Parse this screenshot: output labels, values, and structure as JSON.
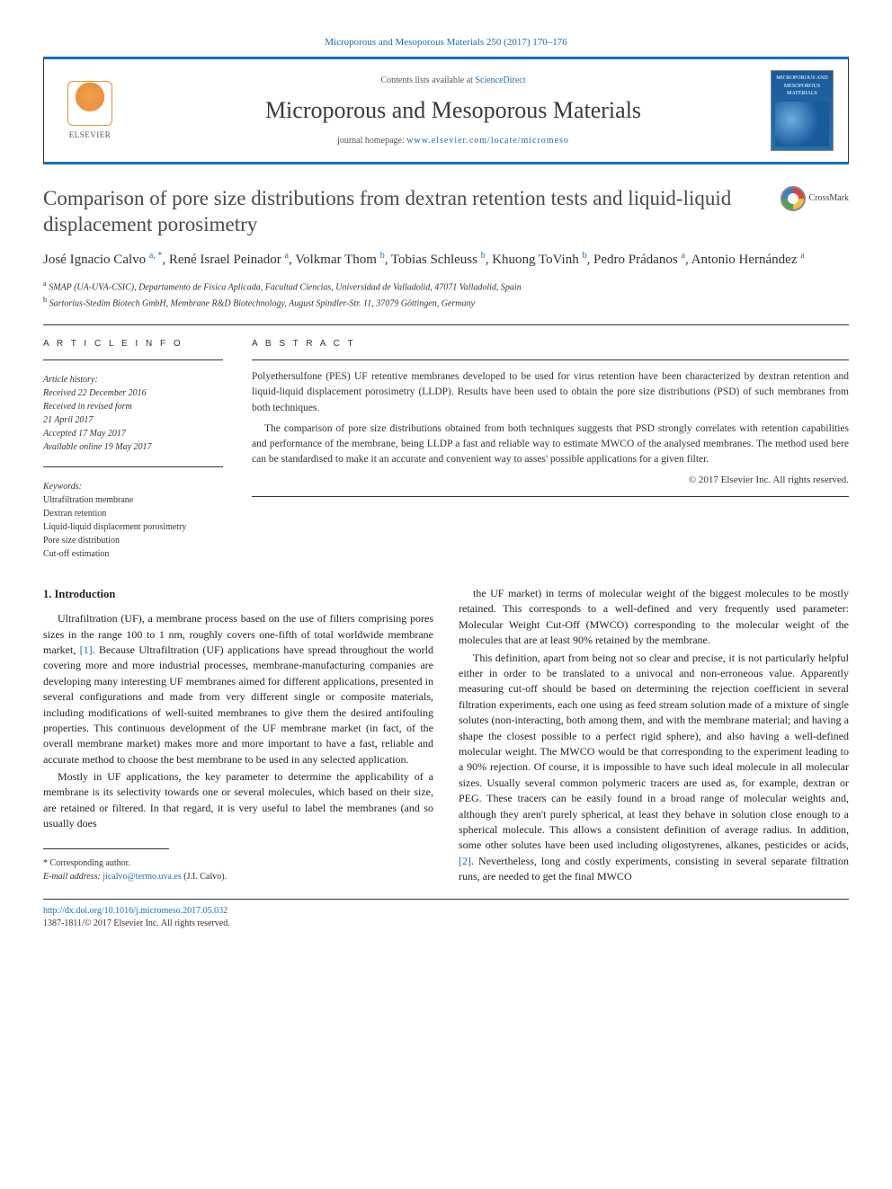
{
  "citation": "Microporous and Mesoporous Materials 250 (2017) 170–176",
  "header": {
    "contents_prefix": "Contents lists available at ",
    "contents_link": "ScienceDirect",
    "journal_name": "Microporous and Mesoporous Materials",
    "homepage_prefix": "journal homepage: ",
    "homepage_url": "www.elsevier.com/locate/micromeso",
    "publisher": "ELSEVIER",
    "cover_text": "MICROPOROUS AND MESOPOROUS MATERIALS"
  },
  "title": "Comparison of pore size distributions from dextran retention tests and liquid-liquid displacement porosimetry",
  "crossmark": "CrossMark",
  "authors_html": "José Ignacio Calvo <sup>a, *</sup>, René Israel Peinador <sup>a</sup>, Volkmar Thom <sup>b</sup>, Tobias Schleuss <sup>b</sup>, Khuong ToVinh <sup>b</sup>, Pedro Prádanos <sup>a</sup>, Antonio Hernández <sup>a</sup>",
  "affiliations": [
    "a SMAP (UA-UVA-CSIC), Departamento de Física Aplicada, Facultad Ciencias, Universidad de Valladolid, 47071 Valladolid, Spain",
    "b Sartorius-Stedim Biotech GmbH, Membrane R&D Biotechnology, August Spindler-Str. 11, 37079 Göttingen, Germany"
  ],
  "article_info": {
    "heading": "A R T I C L E  I N F O",
    "history_label": "Article history:",
    "history": [
      "Received 22 December 2016",
      "Received in revised form",
      "21 April 2017",
      "Accepted 17 May 2017",
      "Available online 19 May 2017"
    ],
    "keywords_label": "Keywords:",
    "keywords": [
      "Ultrafiltration membrane",
      "Dextran retention",
      "Liquid-liquid displacement porosimetry",
      "Pore size distribution",
      "Cut-off estimation"
    ]
  },
  "abstract": {
    "heading": "A B S T R A C T",
    "paragraphs": [
      "Polyethersulfone (PES) UF retentive membranes developed to be used for virus retention have been characterized by dextran retention and liquid-liquid displacement porosimetry (LLDP). Results have been used to obtain the pore size distributions (PSD) of such membranes from both techniques.",
      "The comparison of pore size distributions obtained from both techniques suggests that PSD strongly correlates with retention capabilities and performance of the membrane, being LLDP a fast and reliable way to estimate MWCO of the analysed membranes. The method used here can be standardised to make it an accurate and convenient way to asses' possible applications for a given filter."
    ],
    "copyright": "© 2017 Elsevier Inc. All rights reserved."
  },
  "body": {
    "section1_heading": "1. Introduction",
    "paragraphs": [
      "Ultrafiltration (UF), a membrane process based on the use of filters comprising pores sizes in the range 100 to 1 nm, roughly covers one-fifth of total worldwide membrane market, [1]. Because Ultrafiltration (UF) applications have spread throughout the world covering more and more industrial processes, membrane-manufacturing companies are developing many interesting UF membranes aimed for different applications, presented in several configurations and made from very different single or composite materials, including modifications of well-suited membranes to give them the desired antifouling properties. This continuous development of the UF membrane market (in fact, of the overall membrane market) makes more and more important to have a fast, reliable and accurate method to choose the best membrane to be used in any selected application.",
      "Mostly in UF applications, the key parameter to determine the applicability of a membrane is its selectivity towards one or several molecules, which based on their size, are retained or filtered. In that regard, it is very useful to label the membranes (and so usually does",
      "the UF market) in terms of molecular weight of the biggest molecules to be mostly retained. This corresponds to a well-defined and very frequently used parameter: Molecular Weight Cut-Off (MWCO) corresponding to the molecular weight of the molecules that are at least 90% retained by the membrane.",
      "This definition, apart from being not so clear and precise, it is not particularly helpful either in order to be translated to a univocal and non-erroneous value. Apparently measuring cut-off should be based on determining the rejection coefficient in several filtration experiments, each one using as feed stream solution made of a mixture of single solutes (non-interacting, both among them, and with the membrane material; and having a shape the closest possible to a perfect rigid sphere), and also having a well-defined molecular weight. The MWCO would be that corresponding to the experiment leading to a 90% rejection. Of course, it is impossible to have such ideal molecule in all molecular sizes. Usually several common polymeric tracers are used as, for example, dextran or PEG. These tracers can be easily found in a broad range of molecular weights and, although they aren't purely spherical, at least they behave in solution close enough to a spherical molecule. This allows a consistent definition of average radius. In addition, some other solutes have been used including oligostyrenes, alkanes, pesticides or acids, [2]. Nevertheless, long and costly experiments, consisting in several separate filtration runs, are needed to get the final MWCO"
    ]
  },
  "corresponding": {
    "label": "* Corresponding author.",
    "email_label": "E-mail address: ",
    "email": "jicalvo@termo.uva.es",
    "email_suffix": " (J.I. Calvo)."
  },
  "footer": {
    "doi": "http://dx.doi.org/10.1016/j.micromeso.2017.05.032",
    "issn_line": "1387-1811/© 2017 Elsevier Inc. All rights reserved."
  },
  "colors": {
    "link": "#1a6db3",
    "rule": "#333333",
    "text": "#222222",
    "elsevier_orange": "#e8933a",
    "cover_blue": "#1a5a9a"
  }
}
